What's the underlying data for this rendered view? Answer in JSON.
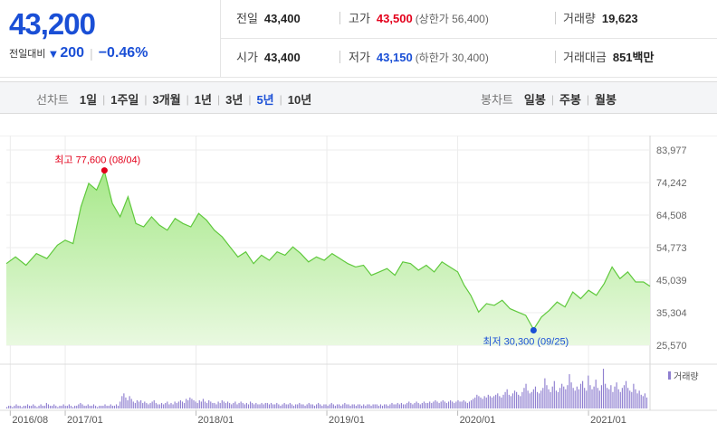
{
  "quote": {
    "price": "43,200",
    "change_label": "전일대비",
    "change_arrow": "▼",
    "change_amount": "200",
    "change_pct": "−0.46%"
  },
  "info": [
    [
      {
        "label": "전일",
        "value": "43,400",
        "tone": ""
      },
      {
        "label": "고가",
        "value": "43,500",
        "tone": "up",
        "sub": "(상한가 56,400)"
      },
      {
        "label": "거래량",
        "value": "19,623",
        "tone": ""
      }
    ],
    [
      {
        "label": "시가",
        "value": "43,400",
        "tone": ""
      },
      {
        "label": "저가",
        "value": "43,150",
        "tone": "down",
        "sub": "(하한가 30,400)"
      },
      {
        "label": "거래대금",
        "value": "851",
        "unit": "백만",
        "tone": ""
      }
    ]
  ],
  "periods": {
    "label": "선차트",
    "items": [
      "1일",
      "1주일",
      "3개월",
      "1년",
      "3년",
      "5년",
      "10년"
    ],
    "active": "5년"
  },
  "candle_periods": {
    "label": "봉차트",
    "items": [
      "일봉",
      "주봉",
      "월봉"
    ]
  },
  "colors": {
    "price_blue": "#1a4fd6",
    "price_red": "#e3001b",
    "line_green": "#5fc93c",
    "volume_purple": "#8f7fd0"
  },
  "chart_data": {
    "type": "area",
    "y_ticks": [
      "83,977",
      "74,242",
      "64,508",
      "54,773",
      "45,039",
      "35,304",
      "25,570"
    ],
    "ylim": [
      25570,
      83977
    ],
    "x_ticks": [
      {
        "label": "2016/08",
        "t": 2016.58
      },
      {
        "label": "2017/01",
        "t": 2017.0
      },
      {
        "label": "2018/01",
        "t": 2018.0
      },
      {
        "label": "2019/01",
        "t": 2019.0
      },
      {
        "label": "2020/01",
        "t": 2020.0
      },
      {
        "label": "2021/01",
        "t": 2021.0
      }
    ],
    "xlim": [
      2016.55,
      2021.47
    ],
    "series": [
      {
        "t": [
          2016.55,
          2016.62,
          2016.7,
          2016.78,
          2016.86,
          2016.94,
          2017.0,
          2017.06,
          2017.12,
          2017.18,
          2017.24,
          2017.3,
          2017.36,
          2017.42,
          2017.48,
          2017.54,
          2017.6,
          2017.66,
          2017.72,
          2017.78,
          2017.84,
          2017.9,
          2017.96,
          2018.02,
          2018.08,
          2018.14,
          2018.2,
          2018.26,
          2018.32,
          2018.38,
          2018.44,
          2018.5,
          2018.56,
          2018.62,
          2018.68,
          2018.74,
          2018.8,
          2018.86,
          2018.92,
          2018.98,
          2019.04,
          2019.1,
          2019.16,
          2019.22,
          2019.28,
          2019.34,
          2019.4,
          2019.46,
          2019.52,
          2019.58,
          2019.64,
          2019.7,
          2019.76,
          2019.82,
          2019.88,
          2019.94,
          2020.0,
          2020.05,
          2020.1,
          2020.16,
          2020.22,
          2020.28,
          2020.34,
          2020.4,
          2020.46,
          2020.52,
          2020.58,
          2020.64,
          2020.7,
          2020.76,
          2020.82,
          2020.88,
          2020.94,
          2021.0,
          2021.06,
          2021.12,
          2021.18,
          2021.24,
          2021.3,
          2021.36,
          2021.42,
          2021.47
        ],
        "values": [
          50000,
          52000,
          49500,
          53000,
          51500,
          55500,
          57000,
          56000,
          67000,
          74000,
          72000,
          77600,
          68000,
          64000,
          70000,
          62000,
          61000,
          64000,
          61500,
          60000,
          63500,
          62000,
          61000,
          65000,
          63000,
          60000,
          58000,
          55000,
          52000,
          53500,
          50000,
          52500,
          51000,
          53500,
          52500,
          55000,
          53000,
          50500,
          52000,
          51000,
          53000,
          51500,
          50000,
          49000,
          49500,
          46500,
          47500,
          48500,
          46500,
          50500,
          50000,
          48000,
          49500,
          47500,
          50500,
          49000,
          47500,
          43500,
          40500,
          35500,
          38000,
          37500,
          39000,
          36500,
          35500,
          34500,
          30300,
          34000,
          36000,
          38500,
          37000,
          41500,
          39500,
          42000,
          40500,
          44000,
          49000,
          45500,
          47500,
          44500,
          44500,
          43200
        ]
      }
    ],
    "volume_label": "거래량",
    "volume": [
      1,
      2,
      2,
      1,
      2,
      3,
      2,
      2,
      1,
      2,
      2,
      3,
      2,
      2,
      3,
      2,
      1,
      2,
      3,
      2,
      2,
      4,
      3,
      2,
      2,
      3,
      2,
      1,
      2,
      2,
      3,
      2,
      2,
      3,
      2,
      1,
      2,
      2,
      3,
      4,
      3,
      2,
      2,
      3,
      2,
      2,
      3,
      2,
      1,
      2,
      2,
      2,
      3,
      2,
      2,
      3,
      2,
      2,
      3,
      2,
      5,
      9,
      11,
      8,
      6,
      9,
      7,
      5,
      4,
      6,
      5,
      6,
      4,
      5,
      4,
      3,
      4,
      5,
      6,
      4,
      3,
      3,
      4,
      3,
      4,
      5,
      3,
      4,
      3,
      5,
      4,
      5,
      6,
      5,
      4,
      7,
      6,
      8,
      7,
      6,
      5,
      4,
      6,
      5,
      7,
      5,
      4,
      6,
      5,
      4,
      4,
      3,
      5,
      4,
      6,
      5,
      4,
      5,
      4,
      3,
      4,
      5,
      3,
      4,
      5,
      4,
      3,
      4,
      3,
      5,
      4,
      3,
      4,
      3,
      3,
      4,
      3,
      4,
      4,
      3,
      4,
      3,
      3,
      4,
      3,
      2,
      3,
      4,
      3,
      3,
      4,
      3,
      2,
      3,
      3,
      4,
      3,
      3,
      2,
      3,
      4,
      3,
      3,
      2,
      3,
      4,
      3,
      2,
      3,
      3,
      2,
      3,
      4,
      3,
      2,
      3,
      3,
      2,
      3,
      4,
      3,
      3,
      2,
      3,
      3,
      2,
      3,
      3,
      2,
      3,
      2,
      3,
      3,
      2,
      3,
      3,
      3,
      2,
      3,
      2,
      3,
      3,
      2,
      3,
      4,
      3,
      3,
      4,
      3,
      4,
      3,
      3,
      4,
      5,
      4,
      3,
      4,
      5,
      4,
      3,
      4,
      5,
      4,
      4,
      5,
      4,
      5,
      6,
      5,
      4,
      5,
      6,
      5,
      4,
      5,
      6,
      5,
      4,
      5,
      6,
      5,
      5,
      6,
      5,
      4,
      5,
      6,
      7,
      8,
      10,
      9,
      8,
      7,
      9,
      8,
      10,
      9,
      8,
      9,
      10,
      11,
      9,
      8,
      10,
      12,
      14,
      10,
      9,
      11,
      13,
      12,
      10,
      9,
      12,
      15,
      18,
      13,
      11,
      12,
      14,
      16,
      12,
      11,
      13,
      15,
      22,
      17,
      14,
      12,
      16,
      20,
      13,
      12,
      15,
      18,
      16,
      14,
      17,
      25,
      19,
      15,
      13,
      16,
      14,
      18,
      20,
      15,
      13,
      24,
      17,
      14,
      16,
      21,
      15,
      13,
      17,
      29,
      18,
      15,
      14,
      17,
      12,
      16,
      19,
      14,
      12,
      15,
      17,
      20,
      15,
      13,
      12,
      18,
      14,
      11,
      13,
      10,
      9,
      11,
      8
    ]
  }
}
